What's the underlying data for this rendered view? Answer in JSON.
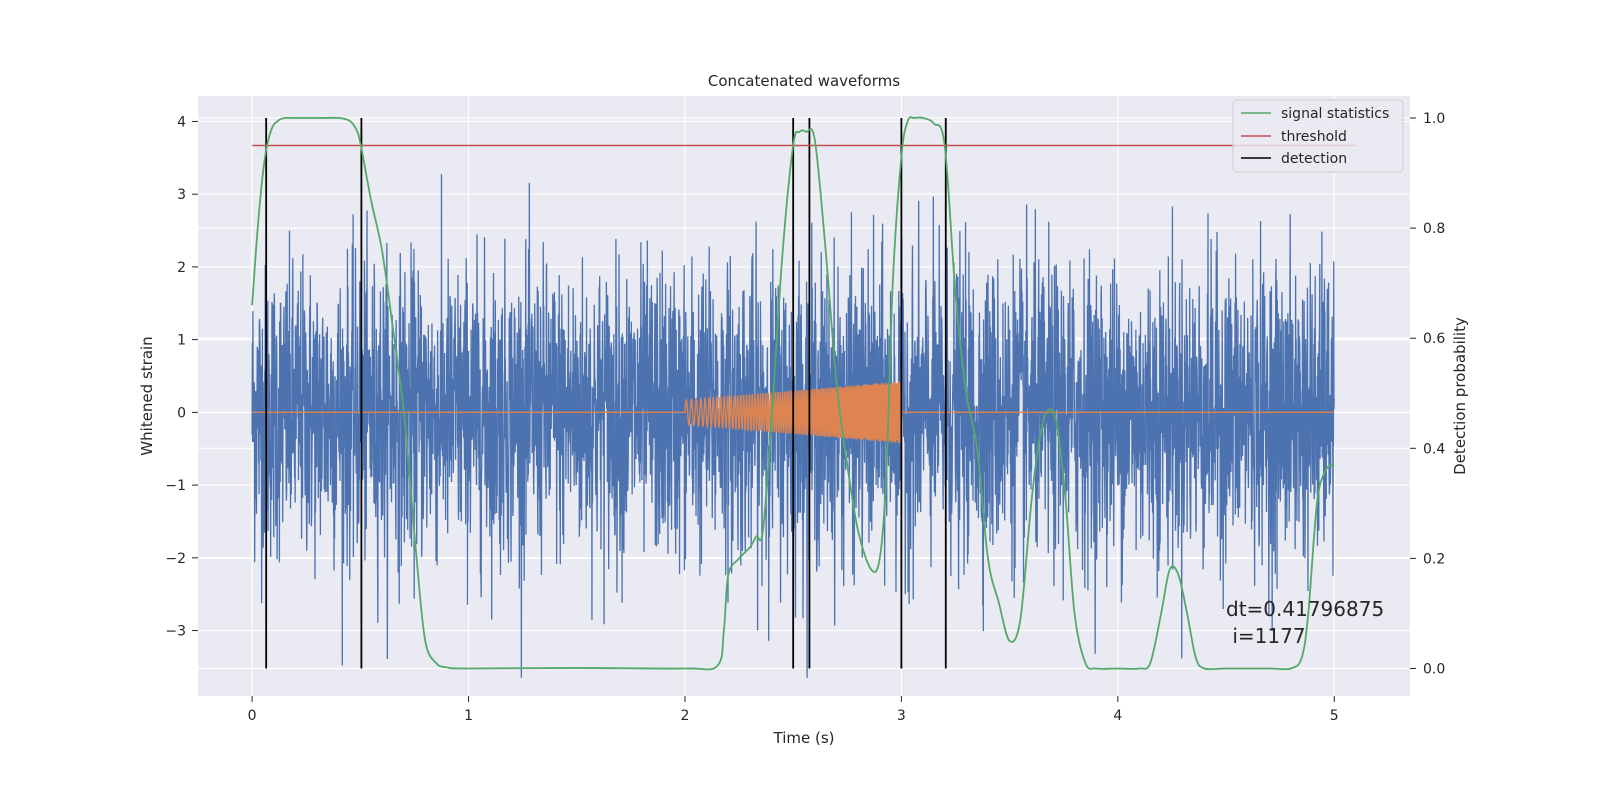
{
  "chart_data": {
    "type": "line",
    "title": "Concatenated waveforms",
    "xlabel": "Time (s)",
    "ylabel": "Whitened strain",
    "ylabel_right": "Detection probability",
    "xlim": [
      -0.25,
      5.35
    ],
    "ylim": [
      -3.9,
      4.35
    ],
    "ylim_right": [
      -0.05,
      1.04
    ],
    "xticks": [
      0,
      1,
      2,
      3,
      4,
      5
    ],
    "yticks": [
      -3,
      -2,
      -1,
      0,
      1,
      2,
      3,
      4
    ],
    "yticks_right": [
      0.0,
      0.2,
      0.4,
      0.6,
      0.8,
      1.0
    ],
    "grid": true,
    "legend_position": "top-right",
    "legend": [
      "signal statistics",
      "threshold",
      "detection"
    ],
    "colors": {
      "strain": "#4c72b0",
      "injected": "#dd8452",
      "statistics": "#55a868",
      "threshold": "#c44e52",
      "detection": "#000000",
      "background": "#eaeaf2",
      "grid": "#ffffff"
    },
    "strain": {
      "x_range": [
        0,
        5
      ],
      "noise_sigma": 1.0,
      "peak_max": 4.0
    },
    "injected_signals": [
      {
        "t_start": 2.0,
        "t_end": 3.0,
        "amp_start": 0.17,
        "amp_end": 0.43,
        "f_start": 40,
        "f_end": 100
      }
    ],
    "signal_statistics": {
      "x": [
        0,
        0.03,
        0.06,
        0.09,
        0.12,
        0.15,
        0.2,
        0.3,
        0.4,
        0.45,
        0.48,
        0.5,
        0.55,
        0.6,
        0.65,
        0.7,
        0.73,
        0.76,
        0.8,
        0.85,
        0.9,
        1.0,
        1.5,
        2.0,
        2.15,
        2.18,
        2.2,
        2.25,
        2.3,
        2.33,
        2.36,
        2.4,
        2.45,
        2.5,
        2.53,
        2.56,
        2.6,
        2.65,
        2.7,
        2.75,
        2.8,
        2.86,
        2.9,
        2.93,
        2.96,
        3.0,
        3.03,
        3.06,
        3.1,
        3.15,
        3.2,
        3.25,
        3.3,
        3.35,
        3.4,
        3.45,
        3.5,
        3.55,
        3.6,
        3.64,
        3.68,
        3.72,
        3.76,
        3.8,
        3.85,
        3.9,
        4.0,
        4.1,
        4.15,
        4.2,
        4.24,
        4.28,
        4.32,
        4.36,
        4.4,
        4.5,
        4.7,
        4.8,
        4.85,
        4.88,
        4.92,
        4.96,
        5.0
      ],
      "y": [
        0.66,
        0.82,
        0.93,
        0.98,
        0.995,
        1.0,
        1.0,
        1.0,
        1.0,
        0.995,
        0.98,
        0.955,
        0.85,
        0.76,
        0.62,
        0.47,
        0.34,
        0.2,
        0.05,
        0.01,
        0.002,
        0.0,
        0.001,
        0.0,
        0.005,
        0.07,
        0.17,
        0.2,
        0.22,
        0.24,
        0.25,
        0.45,
        0.75,
        0.95,
        0.975,
        0.975,
        0.96,
        0.76,
        0.52,
        0.37,
        0.25,
        0.18,
        0.2,
        0.35,
        0.7,
        0.93,
        0.995,
        1.0,
        1.0,
        0.99,
        0.95,
        0.68,
        0.5,
        0.4,
        0.2,
        0.12,
        0.05,
        0.09,
        0.3,
        0.42,
        0.47,
        0.44,
        0.3,
        0.1,
        0.01,
        0.0,
        0.0,
        0.0,
        0.01,
        0.1,
        0.18,
        0.17,
        0.1,
        0.02,
        0.0,
        0.0,
        0.0,
        0.0,
        0.02,
        0.1,
        0.3,
        0.36,
        0.37
      ]
    },
    "threshold": {
      "value": 0.95,
      "x_range": [
        0,
        5.1
      ]
    },
    "detections": [
      0.065,
      0.505,
      2.5,
      2.575,
      3.0,
      3.205
    ],
    "annotations": [
      "dt=0.41796875",
      " i=1177"
    ]
  }
}
